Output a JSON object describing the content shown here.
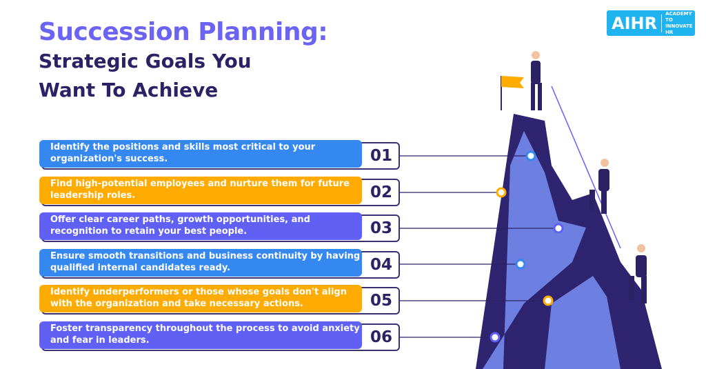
{
  "title": {
    "line1": "Succession Planning:",
    "line2": "Strategic Goals You",
    "line3": "Want To Achieve"
  },
  "logo": {
    "mark": "AIHR",
    "text": "ACADEMY TO INNOVATE HR"
  },
  "colors": {
    "blue": "#3588f0",
    "orange": "#ffab00",
    "purple": "#6060f5",
    "navy": "#2b2266"
  },
  "goals": [
    {
      "num": "01",
      "text": "Identify the positions and skills most critical to your organization's success.",
      "color": "blue"
    },
    {
      "num": "02",
      "text": "Find high-potential employees and nurture them for future leadership roles.",
      "color": "orange"
    },
    {
      "num": "03",
      "text": "Offer clear career paths, growth opportunities, and recognition to retain your best people.",
      "color": "purple"
    },
    {
      "num": "04",
      "text": "Ensure smooth transitions and business continuity by having qualified internal candidates ready.",
      "color": "blue"
    },
    {
      "num": "05",
      "text": "Identify underperformers or those whose goals don't align with the organization and take necessary actions.",
      "color": "orange"
    },
    {
      "num": "06",
      "text": "Foster transparency throughout the process to avoid anxiety and fear in leaders.",
      "color": "purple"
    }
  ]
}
